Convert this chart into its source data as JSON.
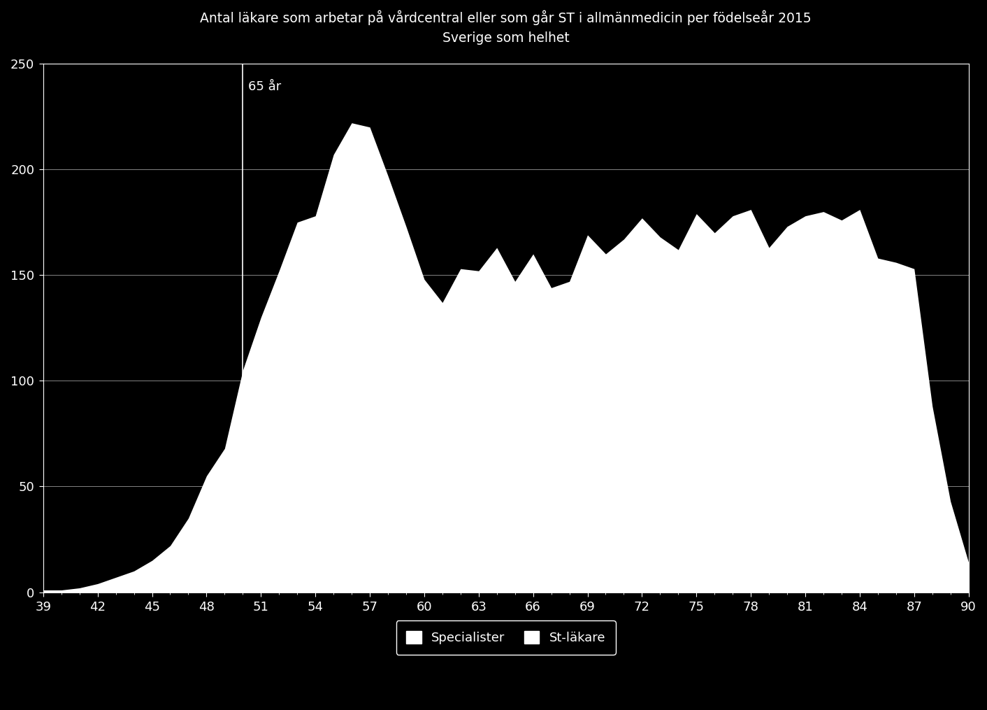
{
  "title_line1": "Antal läkare som arbetar på vårdcentral eller som går ST i allmänmedicin per födelseår 2015",
  "title_line2": "Sverige som helhet",
  "background_color": "#000000",
  "text_color": "#ffffff",
  "area_color": "#ffffff",
  "grid_color": "#ffffff",
  "vline_x": 50,
  "vline_label": "65 år",
  "xlim": [
    39,
    90
  ],
  "ylim": [
    0,
    250
  ],
  "yticks": [
    0,
    50,
    100,
    150,
    200,
    250
  ],
  "xticks": [
    39,
    42,
    45,
    48,
    51,
    54,
    57,
    60,
    63,
    66,
    69,
    72,
    75,
    78,
    81,
    84,
    87,
    90
  ],
  "legend_items": [
    "Specialister",
    "St-läkare"
  ],
  "x": [
    39,
    40,
    41,
    42,
    43,
    44,
    45,
    46,
    47,
    48,
    49,
    50,
    51,
    52,
    53,
    54,
    55,
    56,
    57,
    58,
    59,
    60,
    61,
    62,
    63,
    64,
    65,
    66,
    67,
    68,
    69,
    70,
    71,
    72,
    73,
    74,
    75,
    76,
    77,
    78,
    79,
    80,
    81,
    82,
    83,
    84,
    85,
    86,
    87,
    88,
    89,
    90
  ],
  "total": [
    1,
    1,
    2,
    4,
    7,
    10,
    15,
    22,
    35,
    55,
    68,
    105,
    130,
    152,
    175,
    178,
    207,
    222,
    220,
    197,
    173,
    148,
    137,
    153,
    152,
    163,
    147,
    160,
    144,
    147,
    169,
    160,
    167,
    177,
    168,
    162,
    179,
    170,
    178,
    181,
    163,
    173,
    178,
    180,
    176,
    181,
    158,
    156,
    153,
    88,
    43,
    14
  ]
}
